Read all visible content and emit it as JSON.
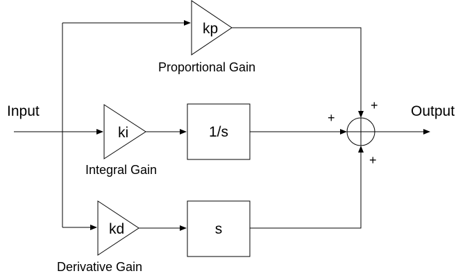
{
  "input_label": "Input",
  "output_label": "Output",
  "blocks": {
    "kp": "kp",
    "ki": "ki",
    "kd": "kd",
    "integrator": "1/s",
    "differentiator": "s"
  },
  "captions": {
    "proportional": "Proportional Gain",
    "integral": "Integral Gain",
    "derivative": "Derivative Gain"
  },
  "signs": {
    "top": "+",
    "left": "+",
    "bottom": "+"
  }
}
